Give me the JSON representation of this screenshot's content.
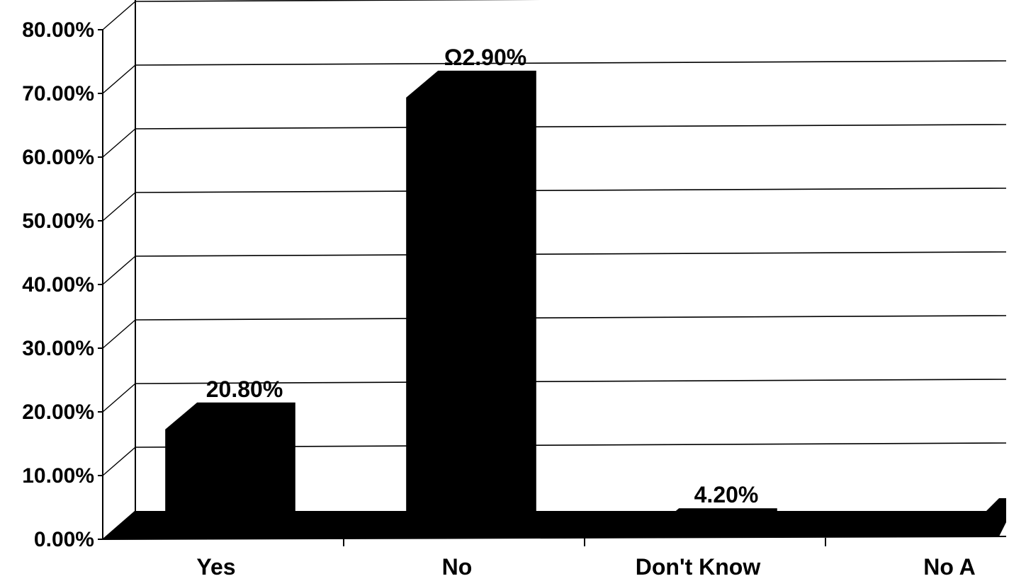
{
  "chart_data": {
    "type": "bar",
    "categories": [
      "Yes",
      "No",
      "Don't Know",
      "No A"
    ],
    "values": [
      20.8,
      72.9,
      4.2,
      0.3
    ],
    "data_labels": [
      "20.80%",
      "Ω2.90%",
      "4.20%",
      ""
    ],
    "yticks": [
      "0.00%",
      "10.00%",
      "20.00%",
      "30.00%",
      "40.00%",
      "50.00%",
      "60.00%",
      "70.00%",
      "80.00%"
    ],
    "ylim": [
      0,
      80
    ],
    "grid": true,
    "legend": "none",
    "style": "3d",
    "bar_color": "#000000",
    "background": "#ffffff"
  }
}
